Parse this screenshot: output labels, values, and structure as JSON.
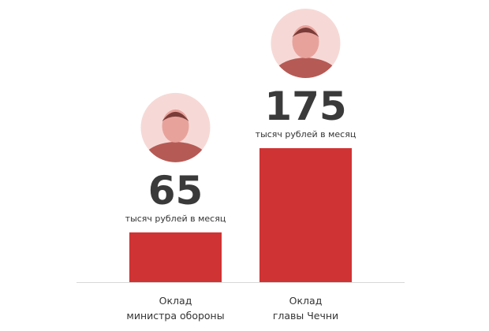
{
  "chart_data": {
    "type": "bar",
    "categories": [
      "Оклад\nминистра обороны",
      "Оклад\nглавы Чечни"
    ],
    "values": [
      65,
      175
    ],
    "unit_label": "тысяч рублей в месяц",
    "color": "#d03333"
  }
}
